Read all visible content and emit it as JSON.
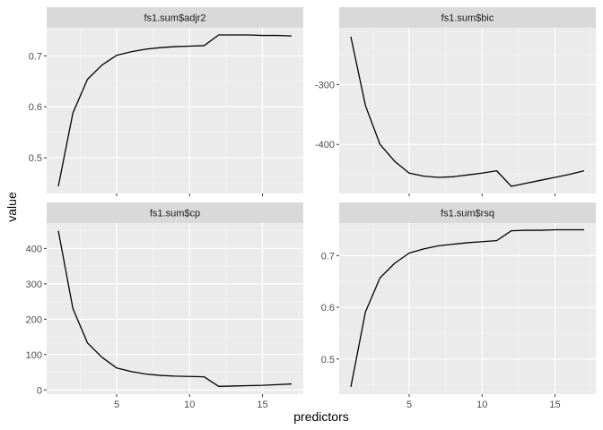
{
  "chart_data": {
    "type": "line",
    "facet_layout": "2x2",
    "xlabel": "predictors",
    "ylabel": "value",
    "x": [
      1,
      2,
      3,
      4,
      5,
      6,
      7,
      8,
      9,
      10,
      11,
      12,
      13,
      14,
      15,
      16,
      17
    ],
    "xlim": [
      0.2,
      17.8
    ],
    "x_ticks": [
      5,
      10,
      15
    ],
    "x_tick_labels": [
      "5",
      "10",
      "15"
    ],
    "grid": true,
    "panel_background": "#ebebeb",
    "strip_background": "#d9d9d9",
    "line_color": "#000000",
    "panels": [
      {
        "title": "fs1.sum$adjr2",
        "values": [
          0.444,
          0.588,
          0.654,
          0.682,
          0.701,
          0.708,
          0.713,
          0.716,
          0.718,
          0.719,
          0.72,
          0.741,
          0.741,
          0.741,
          0.74,
          0.74,
          0.739
        ],
        "ylim": [
          0.43,
          0.755
        ],
        "y_ticks": [
          0.5,
          0.6,
          0.7
        ],
        "y_tick_labels": [
          "0.5",
          "0.6",
          "0.7"
        ]
      },
      {
        "title": "fs1.sum$bic",
        "values": [
          -220,
          -335,
          -400,
          -428,
          -448,
          -453,
          -455,
          -454,
          -451,
          -448,
          -444,
          -470,
          -465,
          -460,
          -455,
          -450,
          -444
        ],
        "ylim": [
          -482,
          -205
        ],
        "y_ticks": [
          -400,
          -300
        ],
        "y_tick_labels": [
          "-400",
          "-300"
        ]
      },
      {
        "title": "fs1.sum$cp",
        "values": [
          450,
          230,
          133,
          92,
          62,
          52,
          45,
          41,
          39,
          38,
          37,
          10,
          11,
          12,
          13,
          15,
          17
        ],
        "ylim": [
          -12,
          472
        ],
        "y_ticks": [
          0,
          100,
          200,
          300,
          400
        ],
        "y_tick_labels": [
          "0",
          "100",
          "200",
          "300",
          "400"
        ]
      },
      {
        "title": "fs1.sum$rsq",
        "values": [
          0.446,
          0.591,
          0.657,
          0.685,
          0.705,
          0.713,
          0.719,
          0.722,
          0.725,
          0.727,
          0.729,
          0.748,
          0.749,
          0.749,
          0.75,
          0.75,
          0.75
        ],
        "ylim": [
          0.432,
          0.763
        ],
        "y_ticks": [
          0.5,
          0.6,
          0.7
        ],
        "y_tick_labels": [
          "0.5",
          "0.6",
          "0.7"
        ]
      }
    ]
  }
}
